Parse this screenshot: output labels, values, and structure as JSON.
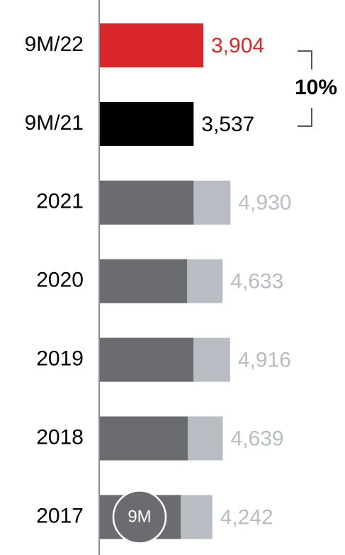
{
  "chart_data": {
    "type": "bar",
    "categories": [
      "9M/22",
      "9M/21",
      "2021",
      "2020",
      "2019",
      "2018",
      "2017"
    ],
    "series": [
      {
        "name": "9M",
        "color": "#6b6c6f",
        "colors": [
          "#d9262a",
          "#000000",
          "#6b6c6f",
          "#6b6c6f",
          "#6b6c6f",
          "#6b6c6f",
          "#6b6c6f"
        ],
        "values": [
          3904,
          3537,
          3537,
          3290,
          3530,
          3315,
          3050
        ],
        "value_labels": [
          "3,904",
          "3,537",
          null,
          null,
          null,
          null,
          null
        ]
      },
      {
        "color": "#b7bdc3",
        "values": [
          null,
          null,
          4930,
          4633,
          4916,
          4639,
          4242
        ],
        "value_labels": [
          null,
          null,
          "4,930",
          "4,633",
          "4,916",
          "4,639",
          "4,242"
        ]
      }
    ],
    "annotation": "10%"
  }
}
